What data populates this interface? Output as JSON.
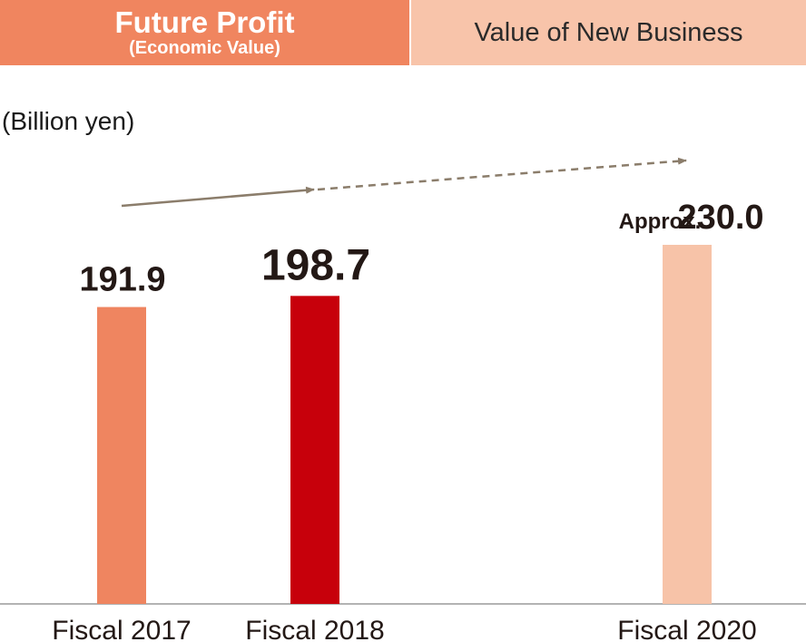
{
  "tabs": {
    "active": {
      "title": "Future Profit",
      "subtitle": "(Economic Value)"
    },
    "inactive": {
      "label": "Value of New Business"
    }
  },
  "unit_label": "(Billion yen)",
  "chart_data": {
    "type": "bar",
    "categories": [
      "Fiscal 2017",
      "Fiscal 2018",
      "Fiscal 2020"
    ],
    "values": [
      191.9,
      198.7,
      230.0
    ],
    "value_labels": [
      "191.9",
      "198.7",
      "230.0"
    ],
    "value_prefix": [
      "",
      "",
      "Approx."
    ],
    "colors": [
      "#ef8560",
      "#c7000b",
      "#f7c3a8"
    ],
    "ylabel": "(Billion yen)",
    "grid": false,
    "legend": "none"
  }
}
